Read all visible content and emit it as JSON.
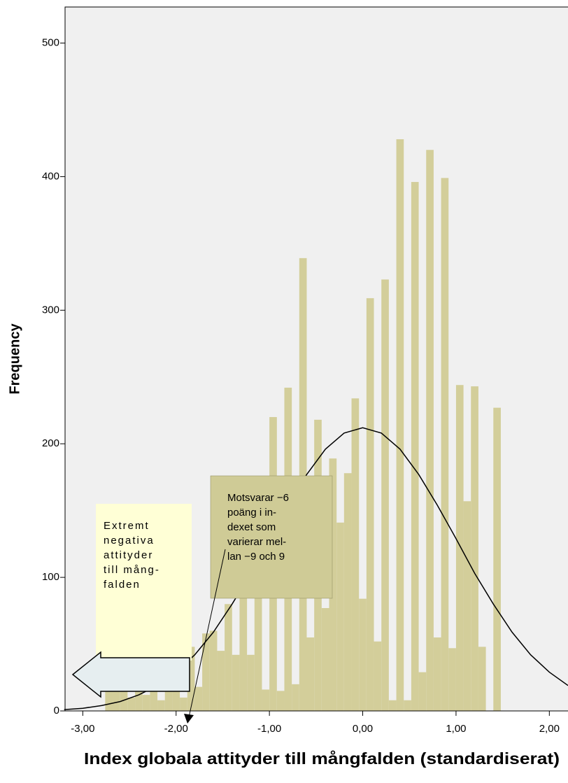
{
  "chart_data": {
    "type": "histogram",
    "x_label": "Index globala attityder till mångfalden (standardiserat)",
    "y_label": "Frequency",
    "color": "#d3ce9a",
    "bins": [
      -2.76,
      -2.68,
      -2.6,
      -2.52,
      -2.44,
      -2.36,
      -2.28,
      -2.2,
      -2.12,
      -2.04,
      -1.96,
      -1.88,
      -1.8,
      -1.72,
      -1.64,
      -1.56,
      -1.48,
      -1.4,
      -1.32,
      -1.24,
      -1.16,
      -1.08,
      -1,
      -0.92,
      -0.84,
      -0.76,
      -0.68,
      -0.6,
      -0.52,
      -0.44,
      -0.36,
      -0.28,
      -0.2,
      -0.12,
      -0.04,
      0.04,
      0.12,
      0.2,
      0.28,
      0.36,
      0.44,
      0.52,
      0.6,
      0.68,
      0.76,
      0.84,
      0.92,
      1,
      1.08,
      1.16,
      1.24,
      1.32,
      1.4,
      1.48
    ],
    "values": [
      28,
      15,
      38,
      10,
      30,
      12,
      40,
      8,
      25,
      48,
      10,
      48,
      18,
      58,
      60,
      45,
      80,
      42,
      88,
      42,
      100,
      16,
      220,
      15,
      242,
      20,
      339,
      55,
      218,
      77,
      189,
      141,
      178,
      234,
      84,
      309,
      52,
      323,
      8,
      428,
      8,
      396,
      29,
      420,
      55,
      399,
      47,
      244,
      157,
      243,
      48,
      0,
      227
    ],
    "curve": {
      "color": "#000000",
      "x": [
        -3.2,
        -3.0,
        -2.8,
        -2.6,
        -2.4,
        -2.2,
        -2.0,
        -1.8,
        -1.6,
        -1.4,
        -1.2,
        -1.0,
        -0.8,
        -0.6,
        -0.4,
        -0.2,
        0,
        0.2,
        0.4,
        0.6,
        0.8,
        1.0,
        1.2,
        1.4,
        1.6,
        1.8,
        2.0,
        2.2
      ],
      "values": [
        1,
        2,
        4,
        7,
        12,
        19,
        29,
        42,
        59,
        80,
        103,
        129,
        154,
        177,
        196,
        208,
        212,
        208,
        196,
        177,
        154,
        129,
        103,
        80,
        59,
        42,
        29,
        19
      ]
    },
    "xlim": [
      -3.19,
      2.2
    ],
    "ylim": [
      0,
      527
    ],
    "xticks": [
      {
        "value": -3,
        "label": "-3,00"
      },
      {
        "value": -2,
        "label": "-2,00"
      },
      {
        "value": -1,
        "label": "-1,00"
      },
      {
        "value": 0,
        "label": "0,00"
      },
      {
        "value": 1,
        "label": "1,00"
      },
      {
        "value": 2,
        "label": "2,00"
      }
    ],
    "yticks": [
      0,
      100,
      200,
      300,
      400,
      500
    ],
    "annotations": [
      {
        "lines": [
          "Extremt",
          "negativa",
          "attityder",
          "till mång-",
          "falden"
        ]
      },
      {
        "lines": [
          "Motsvarar −6",
          "poäng i in-",
          "dexet som",
          "varierar mel-",
          "lan −9 och 9"
        ]
      }
    ]
  }
}
